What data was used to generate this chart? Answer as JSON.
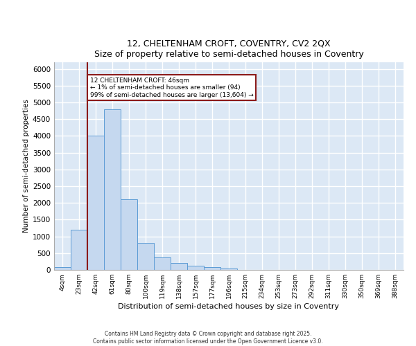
{
  "title_line1": "12, CHELTENHAM CROFT, COVENTRY, CV2 2QX",
  "title_line2": "Size of property relative to semi-detached houses in Coventry",
  "xlabel": "Distribution of semi-detached houses by size in Coventry",
  "ylabel": "Number of semi-detached properties",
  "categories": [
    "4sqm",
    "23sqm",
    "42sqm",
    "61sqm",
    "80sqm",
    "100sqm",
    "119sqm",
    "138sqm",
    "157sqm",
    "177sqm",
    "196sqm",
    "215sqm",
    "234sqm",
    "253sqm",
    "273sqm",
    "292sqm",
    "311sqm",
    "330sqm",
    "350sqm",
    "369sqm",
    "388sqm"
  ],
  "values": [
    80,
    1200,
    4000,
    4800,
    2100,
    800,
    380,
    200,
    130,
    80,
    50,
    0,
    0,
    0,
    0,
    0,
    0,
    0,
    0,
    0,
    0
  ],
  "bar_color": "#c5d8ef",
  "bar_edge_color": "#5b9bd5",
  "background_color": "#dce8f5",
  "grid_color": "#ffffff",
  "vline_color": "#8b1a1a",
  "vline_x": 1.5,
  "annotation_text": "12 CHELTENHAM CROFT: 46sqm\n← 1% of semi-detached houses are smaller (94)\n99% of semi-detached houses are larger (13,604) →",
  "annotation_box_color": "#8b1a1a",
  "footer_text": "Contains HM Land Registry data © Crown copyright and database right 2025.\nContains public sector information licensed under the Open Government Licence v3.0.",
  "ylim": [
    0,
    6200
  ],
  "yticks": [
    0,
    500,
    1000,
    1500,
    2000,
    2500,
    3000,
    3500,
    4000,
    4500,
    5000,
    5500,
    6000
  ],
  "fig_width": 6.0,
  "fig_height": 5.0,
  "dpi": 100
}
